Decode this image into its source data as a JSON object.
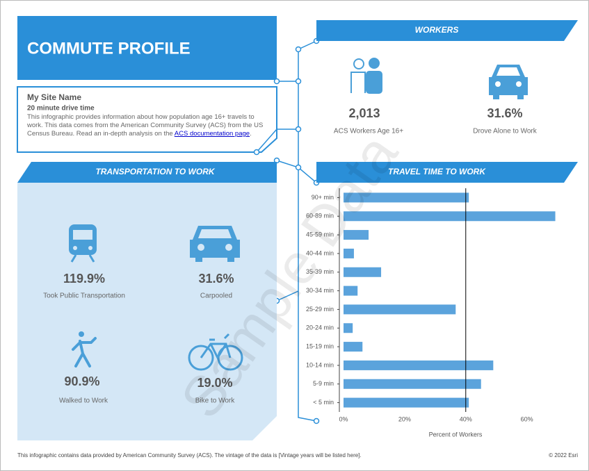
{
  "header": {
    "title": "COMMUTE PROFILE"
  },
  "site": {
    "name": "My Site Name",
    "subtitle": "20 minute drive time",
    "description": "This infographic provides information about how population age 16+ travels to work. This data comes from the American Community Survey (ACS) from the US Census Bureau. Read an in-depth analysis on the ",
    "link": "ACS documentation page",
    "end": "."
  },
  "workers": {
    "title": "WORKERS",
    "stats": [
      {
        "value": "2,013",
        "label": "ACS Workers Age 16+"
      },
      {
        "value": "31.6%",
        "label": "Drove Alone to Work"
      }
    ]
  },
  "transportation": {
    "title": "TRANSPORTATION TO WORK",
    "stats": [
      {
        "value": "119.9%",
        "label": "Took Public Transportation"
      },
      {
        "value": "31.6%",
        "label": "Carpooled"
      },
      {
        "value": "90.9%",
        "label": "Walked to Work"
      },
      {
        "value": "19.0%",
        "label": "Bike to Work"
      }
    ]
  },
  "chart_data": {
    "type": "hbar",
    "title": "TRAVEL TIME TO WORK",
    "x_label": "Percent of Workers",
    "categories": [
      "90+ min",
      "60-89 min",
      "45-59 min",
      "40-44 min",
      "35-39 min",
      "30-34 min",
      "25-29 min",
      "20-24 min",
      "15-19 min",
      "10-14 min",
      "5-9 min",
      "< 5 min"
    ],
    "values": [
      41,
      69.3,
      8.2,
      3.4,
      12.3,
      4.6,
      36.7,
      3,
      6.2,
      49,
      45,
      41
    ],
    "color": "#5ba3dc",
    "reference_value": 40,
    "xlim": [
      0,
      71
    ],
    "xticks": [
      {
        "value": 0,
        "label": "0%"
      },
      {
        "value": 20,
        "label": "20%"
      },
      {
        "value": 40,
        "label": "40%"
      },
      {
        "value": 60,
        "label": "60%"
      }
    ]
  },
  "footer": {
    "note": "This infographic contains data provided by American Community Survey (ACS). The vintage of the data is [Vintage years will be listed here].",
    "copyright": "© 2022 Esri"
  },
  "watermark": "Sample Data"
}
